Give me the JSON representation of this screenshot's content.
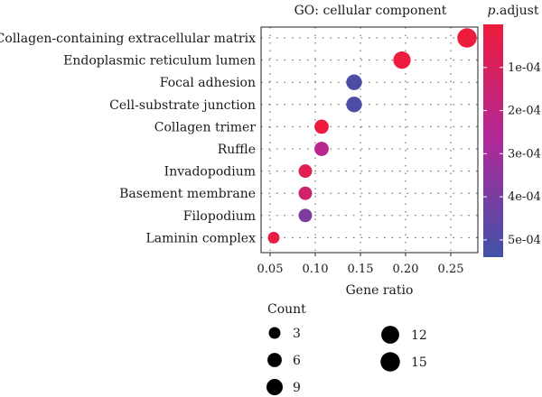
{
  "chart_data": {
    "type": "scatter",
    "title": "GO: cellular component",
    "xlabel": "Gene ratio",
    "ylabel": "",
    "xlim": [
      0.04,
      0.28
    ],
    "xticks": [
      0.05,
      0.1,
      0.15,
      0.2,
      0.25
    ],
    "xtick_labels": [
      "0.05",
      "0.10",
      "0.15",
      "0.20",
      "0.25"
    ],
    "grid": true,
    "categories": [
      "Collagen-containing extracellular matrix",
      "Endoplasmic reticulum lumen",
      "Focal adhesion",
      "Cell-substrate junction",
      "Collagen trimer",
      "Ruffle",
      "Invadopodium",
      "Basement membrane",
      "Filopodium",
      "Laminin complex"
    ],
    "points": [
      {
        "term": "Collagen-containing extracellular matrix",
        "gene_ratio": 0.268,
        "count": 15,
        "p_adjust": 4e-06
      },
      {
        "term": "Endoplasmic reticulum lumen",
        "gene_ratio": 0.196,
        "count": 11,
        "p_adjust": 6e-06
      },
      {
        "term": "Focal adhesion",
        "gene_ratio": 0.143,
        "count": 8,
        "p_adjust": 0.000505
      },
      {
        "term": "Cell-substrate junction",
        "gene_ratio": 0.143,
        "count": 8,
        "p_adjust": 0.000505
      },
      {
        "term": "Collagen trimer",
        "gene_ratio": 0.107,
        "count": 6,
        "p_adjust": 5e-06
      },
      {
        "term": "Ruffle",
        "gene_ratio": 0.107,
        "count": 6,
        "p_adjust": 0.00023
      },
      {
        "term": "Invadopodium",
        "gene_ratio": 0.089,
        "count": 5,
        "p_adjust": 6e-05
      },
      {
        "term": "Basement membrane",
        "gene_ratio": 0.089,
        "count": 5,
        "p_adjust": 0.00014
      },
      {
        "term": "Filopodium",
        "gene_ratio": 0.089,
        "count": 5,
        "p_adjust": 0.00039
      },
      {
        "term": "Laminin complex",
        "gene_ratio": 0.054,
        "count": 3,
        "p_adjust": 3e-05
      }
    ],
    "color_legend": {
      "title_italic": "p",
      "title_rest": ".adjust",
      "min": 0.0,
      "max": 0.00054,
      "ticks": [
        0.0001,
        0.0002,
        0.0003,
        0.0004,
        0.0005
      ],
      "tick_labels": [
        "1e-04",
        "2e-04",
        "3e-04",
        "4e-04",
        "5e-04"
      ],
      "low_color": "#ee1c3c",
      "mid_color": "#b0289a",
      "high_color": "#3f52a8"
    },
    "size_legend": {
      "title": "Count",
      "values": [
        3,
        6,
        9,
        12,
        15
      ],
      "labels": [
        "3",
        "6",
        "9",
        "12",
        "15"
      ],
      "color": "#000000"
    }
  }
}
